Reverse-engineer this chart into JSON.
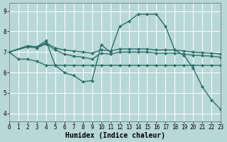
{
  "bg_color": "#b8d8d8",
  "grid_color": "#ffffff",
  "line_color": "#2e6e6a",
  "markersize": 2.5,
  "linewidth": 1.0,
  "xlabel": "Humidex (Indice chaleur)",
  "xlabel_fontsize": 7,
  "xlim": [
    0,
    23
  ],
  "ylim": [
    3.6,
    9.4
  ],
  "xticks": [
    0,
    1,
    2,
    3,
    4,
    5,
    6,
    7,
    8,
    9,
    10,
    11,
    12,
    13,
    14,
    15,
    16,
    17,
    18,
    19,
    20,
    21,
    22,
    23
  ],
  "yticks": [
    4,
    5,
    6,
    7,
    8,
    9
  ],
  "tick_fontsize": 5.5,
  "series": [
    {
      "x": [
        0,
        2,
        3,
        4,
        5,
        6,
        7,
        8,
        9,
        10,
        11,
        12,
        13,
        14,
        15,
        16,
        17,
        18,
        19,
        20,
        21,
        22,
        23
      ],
      "y": [
        7.0,
        7.3,
        7.25,
        7.55,
        6.35,
        6.0,
        5.85,
        5.55,
        5.6,
        7.35,
        7.0,
        8.25,
        8.5,
        8.85,
        8.85,
        8.85,
        8.25,
        7.1,
        6.85,
        6.2,
        5.3,
        4.65,
        4.2
      ]
    },
    {
      "x": [
        0,
        2,
        3,
        4,
        5,
        6,
        7,
        8,
        9,
        10,
        11,
        12,
        13,
        14,
        15,
        16,
        17,
        18,
        19,
        20,
        21,
        22,
        23
      ],
      "y": [
        7.0,
        7.3,
        7.25,
        7.45,
        7.2,
        7.1,
        7.05,
        7.0,
        6.95,
        7.1,
        7.05,
        7.15,
        7.15,
        7.15,
        7.15,
        7.1,
        7.1,
        7.1,
        7.05,
        7.0,
        6.97,
        6.95,
        6.9
      ]
    },
    {
      "x": [
        0,
        2,
        3,
        4,
        5,
        6,
        7,
        8,
        9,
        10,
        11,
        12,
        13,
        14,
        15,
        16,
        17,
        18,
        19,
        20,
        21,
        22,
        23
      ],
      "y": [
        7.0,
        7.25,
        7.2,
        7.4,
        7.1,
        6.9,
        6.8,
        6.75,
        6.65,
        6.95,
        6.9,
        7.0,
        7.0,
        7.0,
        7.0,
        6.95,
        6.95,
        6.95,
        6.9,
        6.85,
        6.82,
        6.8,
        6.75
      ]
    },
    {
      "x": [
        0,
        1,
        2,
        3,
        4,
        5,
        6,
        7,
        8,
        9,
        10,
        11,
        12,
        13,
        14,
        15,
        16,
        17,
        18,
        19,
        20,
        21,
        22,
        23
      ],
      "y": [
        7.0,
        6.65,
        6.65,
        6.55,
        6.35,
        6.35,
        6.35,
        6.35,
        6.35,
        6.35,
        6.35,
        6.35,
        6.35,
        6.35,
        6.35,
        6.35,
        6.35,
        6.35,
        6.35,
        6.35,
        6.35,
        6.35,
        6.35,
        6.35
      ]
    }
  ]
}
